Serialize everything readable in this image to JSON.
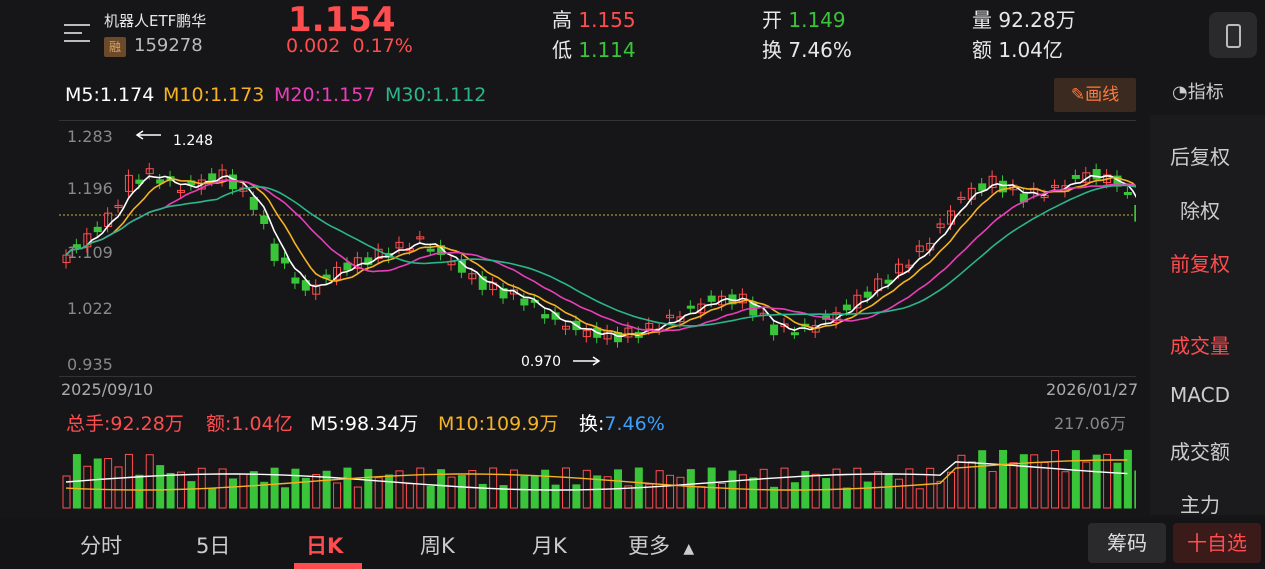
{
  "header": {
    "name": "机器人ETF鹏华",
    "rong": "融",
    "code": "159278",
    "price": "1.154",
    "change": "0.002",
    "change_pct": "0.17%",
    "high_label": "高",
    "high": "1.155",
    "low_label": "低",
    "low": "1.114",
    "open_label": "开",
    "open": "1.149",
    "turn_label": "换",
    "turn": "7.46%",
    "vol_label": "量",
    "vol": "92.28万",
    "amt_label": "额",
    "amt": "1.04亿"
  },
  "ma": {
    "m5": "M5:1.174",
    "m10": "M10:1.173",
    "m20": "M20:1.157",
    "m30": "M30:1.112"
  },
  "toolbar": {
    "draw": "画线",
    "indicator": "指标"
  },
  "sidebar": [
    "后复权",
    "除权",
    "前复权",
    "成交量",
    "MACD",
    "成交额",
    "主力"
  ],
  "axis": {
    "ticks": [
      "1.283",
      "1.196",
      "1.109",
      "1.022",
      "0.935"
    ],
    "start_date": "2025/09/10",
    "end_date": "2026/01/27",
    "max_label": "1.248",
    "min_label": "0.970"
  },
  "volume": {
    "total": "总手:92.28万",
    "amount": "额:1.04亿",
    "m5": "M5:98.34万",
    "m10": "M10:109.9万",
    "turn_label": "换:",
    "turn": "7.46%",
    "max": "217.06万"
  },
  "tabs": [
    "分时",
    "5日",
    "日K",
    "周K",
    "月K",
    "更多"
  ],
  "buttons": {
    "chip": "筹码",
    "fav": "十自选"
  },
  "colors": {
    "up": "#ff4d4f",
    "down": "#3ac43a",
    "m5": "#ffffff",
    "m10": "#f5b324",
    "m20": "#e83fb8",
    "m30": "#2bb58a"
  },
  "chart_data": {
    "type": "candlestick",
    "ylim": [
      0.935,
      1.283
    ],
    "x_start": "2025/09/10",
    "x_end": "2026/01/27",
    "last_close": 1.154,
    "max_high": 1.248,
    "min_low": 0.97,
    "volume_max": "217.06万"
  }
}
